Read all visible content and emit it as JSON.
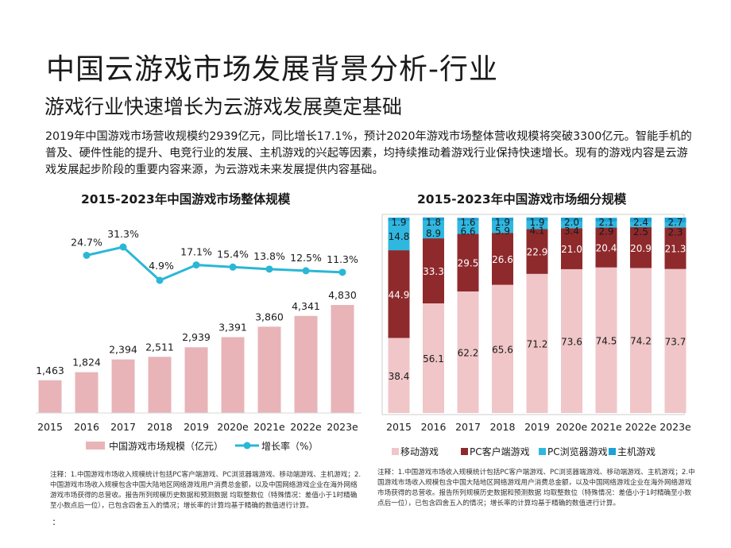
{
  "page": {
    "title": "中国云游戏市场发展背景分析-行业",
    "subtitle": "游戏行业快速增长为云游戏发展奠定基础",
    "intro": "2019年中国游戏市场营收规模约2939亿元，同比增长17.1%，预计2020年游戏市场整体营收规模将突破3300亿元。智能手机的普及、硬件性能的提升、电竞行业的发展、主机游戏的兴起等因素，均持续推动着游戏行业保持快速增长。现有的游戏内容是云游戏发展起步阶段的重要内容来源，为云游戏未来发展提供内容基础。",
    "note_mark": ":"
  },
  "colors": {
    "bar_pink": "#e8b4b8",
    "line_teal": "#2ab7d6",
    "mobile": "#f0c6c8",
    "pc_client": "#8e2a2c",
    "pc_browser": "#2fb7e0",
    "console": "#1aa3d6"
  },
  "chart_data": [
    {
      "type": "bar",
      "title": "2015-2023年中国游戏市场整体规模",
      "categories": [
        "2015",
        "2016",
        "2017",
        "2018",
        "2019",
        "2020e",
        "2021e",
        "2022e",
        "2023e"
      ],
      "series": [
        {
          "name": "中国游戏市场规模（亿元）",
          "type": "bar",
          "values": [
            1463,
            1824,
            2394,
            2511,
            2939,
            3391,
            3860,
            4341,
            4830
          ],
          "labels": [
            "1,463",
            "1,824",
            "2,394",
            "2,511",
            "2,939",
            "3,391",
            "3,860",
            "4,341",
            "4,830"
          ]
        },
        {
          "name": "增长率（%）",
          "type": "line",
          "values": [
            null,
            24.7,
            31.3,
            4.9,
            17.1,
            15.4,
            13.8,
            12.5,
            11.3
          ],
          "labels": [
            "",
            "24.7%",
            "31.3%",
            "4.9%",
            "17.1%",
            "15.4%",
            "13.8%",
            "12.5%",
            "11.3%"
          ]
        }
      ],
      "legend": [
        "中国游戏市场规模（亿元）",
        "增长率（%）"
      ],
      "legend_position": "bottom",
      "note": "注释：1.中国游戏市场收入规模统计包括PC客户端游戏、PC浏览器端游戏、移动端游戏、主机游戏；2.中国游戏市场收入规模包含中国大陆地区网络游戏用户消费总金额，以及中国网络游戏企业在海外网络游戏市场获得的总营收。报告所列规模历史数据和预测数据 均取整数位（特殊情况：差值小于1时精确至小数点后一位），已包含四舍五入的情况；增长率的计算均基于精确的数值进行计算。"
    },
    {
      "type": "bar",
      "stacked": true,
      "title": "2015-2023年中国游戏市场细分规模",
      "categories": [
        "2015",
        "2016",
        "2017",
        "2018",
        "2019",
        "2020e",
        "2021e",
        "2022e",
        "2023e"
      ],
      "series": [
        {
          "name": "移动游戏",
          "values": [
            38.4,
            56.1,
            62.2,
            65.6,
            71.2,
            73.6,
            74.5,
            74.2,
            73.7
          ]
        },
        {
          "name": "PC客户端游戏",
          "values": [
            44.9,
            33.3,
            29.5,
            26.6,
            22.9,
            21.0,
            20.4,
            20.9,
            21.3
          ]
        },
        {
          "name": "PC浏览器游戏",
          "values": [
            14.8,
            8.9,
            6.6,
            5.9,
            4.1,
            3.4,
            2.9,
            2.5,
            2.3
          ]
        },
        {
          "name": "主机游戏",
          "values": [
            1.9,
            1.8,
            1.6,
            1.9,
            1.9,
            2.0,
            2.1,
            2.4,
            2.7
          ]
        }
      ],
      "ylim": [
        0,
        100
      ],
      "legend": [
        "移动游戏",
        "PC客户端游戏",
        "PC浏览器游戏",
        "主机游戏"
      ],
      "legend_position": "bottom",
      "note": "注释：1.中国游戏市场收入规模统计包括PC客户端游戏、PC浏览器端游戏、移动端游戏、主机游戏；2.中国游戏市场收入规模包含中国大陆地区网络游戏用户消费总金额，以及中国网络游戏企业在海外网络游戏市场获得的总营收。报告所列规模历史数据和预测数据 均取整数位（特殊情况：差值小于1时精确至小数点后一位），已包含四舍五入的情况；增长率的计算均基于精确的数值进行计算。"
    }
  ]
}
